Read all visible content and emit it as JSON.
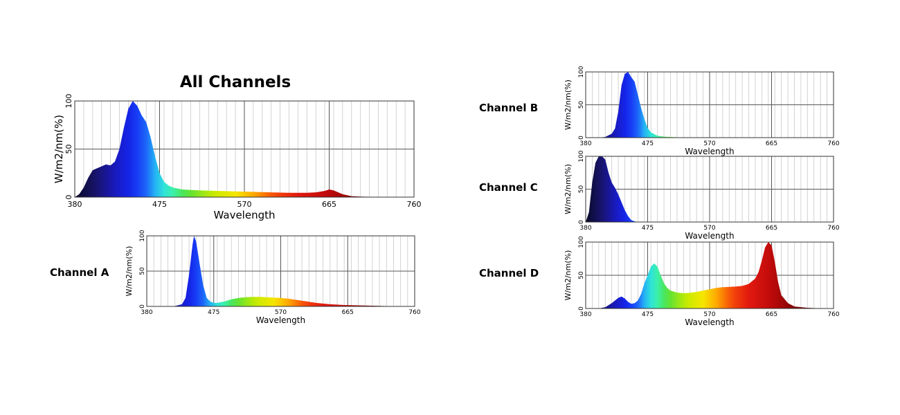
{
  "title": "All Channels",
  "channel_labels": [
    "Channel A",
    "Channel B",
    "Channel C",
    "Channel D"
  ],
  "chart_data": [
    {
      "type": "area",
      "title": "All Channels",
      "xlabel": "Wavelength",
      "ylabel": "W/m2/nm(%)",
      "x_ticks": [
        380,
        475,
        570,
        665,
        760
      ],
      "y_ticks": [
        0,
        50,
        100
      ],
      "xlim": [
        380,
        760
      ],
      "ylim": [
        0,
        100
      ],
      "grid": true,
      "x": [
        380,
        385,
        390,
        395,
        400,
        405,
        410,
        415,
        420,
        425,
        430,
        435,
        440,
        445,
        450,
        455,
        460,
        465,
        470,
        475,
        480,
        485,
        490,
        500,
        510,
        520,
        540,
        560,
        580,
        600,
        620,
        640,
        650,
        660,
        665,
        670,
        680,
        690,
        700,
        720,
        740,
        760
      ],
      "y": [
        0,
        3,
        10,
        20,
        28,
        30,
        32,
        34,
        33,
        37,
        50,
        72,
        92,
        100,
        95,
        85,
        78,
        62,
        42,
        25,
        16,
        12,
        10,
        8,
        7.5,
        7,
        6.5,
        6,
        5.5,
        5,
        4.5,
        4.5,
        5,
        6.5,
        8,
        7,
        3,
        1,
        0.5,
        0.2,
        0,
        0
      ]
    },
    {
      "type": "area",
      "title": "Channel A",
      "xlabel": "Wavelength",
      "ylabel": "W/m2/nm(%)",
      "x_ticks": [
        380,
        475,
        570,
        665,
        760
      ],
      "y_ticks": [
        0,
        50,
        100
      ],
      "xlim": [
        380,
        760
      ],
      "ylim": [
        0,
        100
      ],
      "grid": true,
      "x": [
        380,
        400,
        420,
        430,
        435,
        440,
        445,
        447,
        450,
        455,
        460,
        465,
        470,
        475,
        480,
        490,
        500,
        510,
        520,
        530,
        540,
        550,
        560,
        570,
        580,
        590,
        600,
        620,
        640,
        660,
        680,
        700,
        720,
        760
      ],
      "y": [
        0,
        0,
        0.5,
        3,
        12,
        45,
        88,
        100,
        92,
        60,
        30,
        12,
        7,
        5,
        5,
        7,
        10,
        12,
        13,
        13.5,
        13.5,
        13,
        12.5,
        12,
        11,
        9.5,
        8,
        5,
        3,
        2,
        1.5,
        1,
        0.5,
        0
      ]
    },
    {
      "type": "area",
      "title": "Channel B",
      "xlabel": "Wavelength",
      "ylabel": "W/m2/nm(%)",
      "x_ticks": [
        380,
        475,
        570,
        665,
        760
      ],
      "y_ticks": [
        0,
        50,
        100
      ],
      "xlim": [
        380,
        760
      ],
      "ylim": [
        0,
        100
      ],
      "grid": true,
      "x": [
        380,
        400,
        410,
        420,
        425,
        430,
        435,
        440,
        445,
        450,
        455,
        460,
        465,
        470,
        475,
        480,
        490,
        500,
        520,
        560,
        600,
        760
      ],
      "y": [
        0,
        0,
        1,
        6,
        14,
        40,
        80,
        97,
        100,
        92,
        85,
        65,
        45,
        28,
        15,
        8,
        3,
        1.5,
        0.5,
        0,
        0,
        0
      ]
    },
    {
      "type": "area",
      "title": "Channel C",
      "xlabel": "Wavelength",
      "ylabel": "W/m2/nm(%)",
      "x_ticks": [
        380,
        475,
        570,
        665,
        760
      ],
      "y_ticks": [
        0,
        50,
        100
      ],
      "xlim": [
        380,
        760
      ],
      "ylim": [
        0,
        100
      ],
      "grid": true,
      "x": [
        380,
        385,
        390,
        395,
        400,
        405,
        410,
        415,
        420,
        425,
        430,
        435,
        440,
        445,
        450,
        455,
        460,
        470,
        480,
        500,
        600,
        760
      ],
      "y": [
        0,
        15,
        60,
        90,
        100,
        100,
        95,
        75,
        60,
        52,
        42,
        30,
        18,
        9,
        3,
        1,
        0,
        0,
        0,
        0,
        0,
        0
      ]
    },
    {
      "type": "area",
      "title": "Channel D",
      "xlabel": "Wavelength",
      "ylabel": "W/m2/nm(%)",
      "x_ticks": [
        380,
        475,
        570,
        665,
        760
      ],
      "y_ticks": [
        0,
        50,
        100
      ],
      "xlim": [
        380,
        760
      ],
      "ylim": [
        0,
        100
      ],
      "grid": true,
      "x": [
        380,
        400,
        410,
        420,
        430,
        435,
        440,
        445,
        450,
        455,
        460,
        465,
        470,
        475,
        480,
        485,
        490,
        495,
        500,
        505,
        510,
        520,
        530,
        540,
        550,
        560,
        570,
        580,
        590,
        600,
        610,
        620,
        630,
        640,
        645,
        650,
        655,
        660,
        665,
        670,
        675,
        680,
        690,
        700,
        720,
        740,
        760
      ],
      "y": [
        0,
        0,
        2,
        8,
        16,
        18,
        15,
        10,
        7,
        8,
        12,
        22,
        38,
        50,
        63,
        68,
        63,
        50,
        38,
        31,
        27,
        24,
        23,
        23.5,
        25,
        27,
        29,
        31,
        32,
        32.5,
        33,
        34,
        37,
        45,
        55,
        72,
        92,
        100,
        95,
        70,
        40,
        20,
        8,
        3,
        1,
        0.3,
        0
      ]
    }
  ]
}
